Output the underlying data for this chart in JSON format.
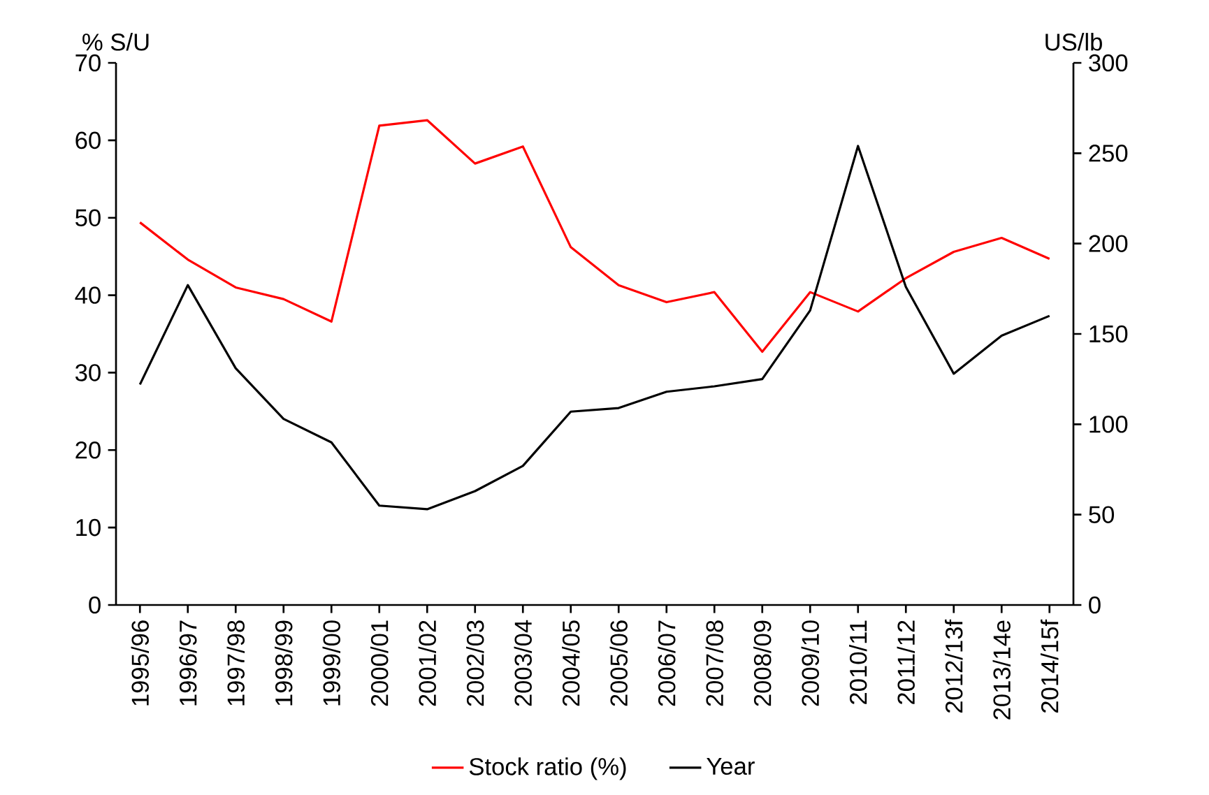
{
  "chart_data": {
    "type": "line",
    "ylabel": "% S/U",
    "y2label": "US/lb",
    "categories": [
      "1995/96",
      "1996/97",
      "1997/98",
      "1998/99",
      "1999/00",
      "2000/01",
      "2001/02",
      "2002/03",
      "2003/04",
      "2004/05",
      "2005/06",
      "2006/07",
      "2007/08",
      "2008/09",
      "2009/10",
      "2010/11",
      "2011/12",
      "2012/13f",
      "2013/14e",
      "2014/15f"
    ],
    "series": [
      {
        "name": "Stock ratio (%)",
        "color": "#ff0000",
        "values": [
          49.4,
          44.6,
          41.0,
          39.5,
          36.6,
          61.9,
          62.6,
          57.0,
          59.2,
          46.2,
          41.3,
          39.1,
          40.4,
          32.7,
          40.4,
          37.9,
          42.2,
          45.6,
          47.4,
          44.7
        ]
      },
      {
        "name": "Year",
        "color": "#000000",
        "axis": "y2",
        "values": [
          122,
          177,
          131,
          103,
          90,
          55,
          53,
          63,
          77,
          107,
          109,
          118,
          121,
          125,
          163,
          254,
          176,
          128,
          149,
          160
        ]
      }
    ],
    "ylim": [
      0,
      70
    ],
    "yticks": [
      0,
      10,
      20,
      30,
      40,
      50,
      60,
      70
    ],
    "y2lim": [
      0,
      300
    ],
    "y2ticks": [
      0,
      50,
      100,
      150,
      200,
      250,
      300
    ],
    "legend": "bottom",
    "marker": "none",
    "line_style": "solid"
  }
}
